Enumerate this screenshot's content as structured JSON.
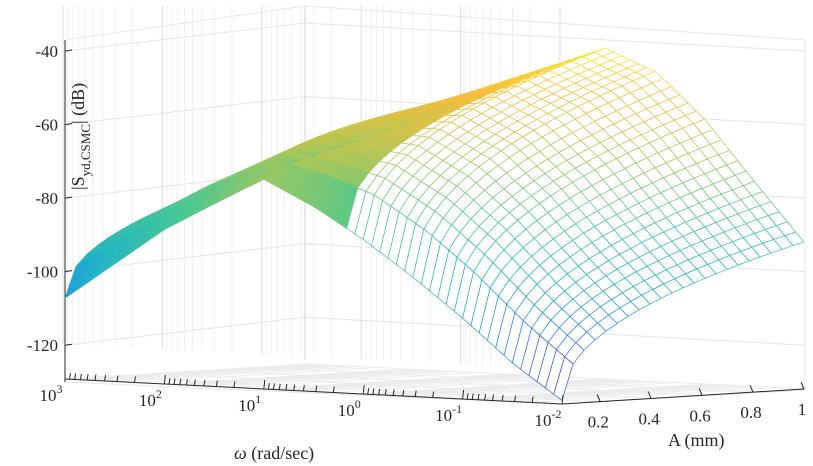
{
  "chart_data": {
    "type": "surface",
    "zlabel": "|S",
    "zlabel_sub": "yd,CSMC",
    "zlabel_unit": "| (dB)",
    "xlabel_symbol": "ω",
    "xlabel_unit": " (rad/sec)",
    "ylabel": "A (mm)",
    "x_scale": "log",
    "x_ticks": [
      {
        "base": "10",
        "exp": "3"
      },
      {
        "base": "10",
        "exp": "2"
      },
      {
        "base": "10",
        "exp": "1"
      },
      {
        "base": "10",
        "exp": "0"
      },
      {
        "base": "10",
        "exp": "-1"
      },
      {
        "base": "10",
        "exp": "-2"
      }
    ],
    "y_ticks": [
      "0.2",
      "0.4",
      "0.6",
      "0.8",
      "1"
    ],
    "z_ticks": [
      "-40",
      "-60",
      "-80",
      "-100",
      "-120"
    ],
    "xlim": [
      0.01,
      1000
    ],
    "ylim": [
      0.05,
      1
    ],
    "zlim": [
      -130,
      -37
    ],
    "grid": true,
    "colormap": [
      "#3f2db8",
      "#2a7cf2",
      "#1fb3c9",
      "#46c795",
      "#a9c75a",
      "#f9bd3c",
      "#faf724"
    ],
    "surface_profile": {
      "omega": [
        1000,
        100,
        30,
        10,
        3,
        1,
        0.3,
        0.1,
        0.03,
        0.01
      ],
      "A": [
        0.05,
        0.1,
        0.2,
        0.3,
        0.4,
        0.5,
        0.6,
        0.7,
        0.8,
        0.9,
        1.0
      ],
      "magnitude_dB_at_A_0_05": [
        -108,
        -88,
        -80,
        -73,
        -80,
        -88,
        -98,
        -108,
        -120,
        -129
      ],
      "magnitude_dB_at_A_1": [
        -74,
        -64,
        -58,
        -52,
        -45,
        -40,
        -46,
        -58,
        -75,
        -90
      ]
    }
  }
}
